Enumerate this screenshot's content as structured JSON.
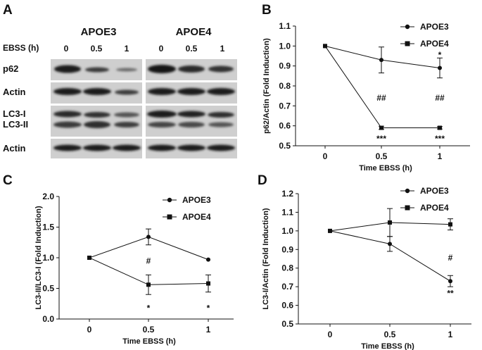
{
  "panel_labels": [
    "A",
    "B",
    "C",
    "D"
  ],
  "western_blot": {
    "group_labels": [
      "APOE3",
      "APOE4"
    ],
    "treatment_label": "EBSS (h)",
    "lane_labels": [
      "0",
      "0.5",
      "1",
      "0",
      "0.5",
      "1"
    ],
    "row_labels": [
      "p62",
      "Actin",
      "LC3-I",
      "LC3-II",
      "Actin"
    ]
  },
  "chart_data": [
    {
      "panel": "B",
      "type": "line",
      "x": [
        0,
        0.5,
        1
      ],
      "x_tick_labels": [
        "0",
        "0.5",
        "1"
      ],
      "xlabel": "Time EBSS (h)",
      "ylabel": "p62/Actin (Fold Induction)",
      "ylim": [
        0.5,
        1.1
      ],
      "yticks": [
        0.5,
        0.6,
        0.7,
        0.8,
        0.9,
        1.0,
        1.1
      ],
      "ytick_labels": [
        "0.5",
        "0.6",
        "0.7",
        "0.8",
        "0.9",
        "1.0",
        "1.1"
      ],
      "legend_position": "top-right",
      "series": [
        {
          "name": "APOE3",
          "marker": "circle",
          "values": [
            1.0,
            0.93,
            0.89
          ],
          "errors": [
            0,
            0.065,
            0.05
          ]
        },
        {
          "name": "APOE4",
          "marker": "square",
          "values": [
            1.0,
            0.59,
            0.59
          ],
          "errors": [
            0,
            0.008,
            0.006
          ]
        }
      ],
      "annotations": [
        {
          "text": "*",
          "x": 1,
          "y": 0.955
        },
        {
          "text": "##",
          "x": 0.5,
          "y": 0.74
        },
        {
          "text": "##",
          "x": 1,
          "y": 0.74
        },
        {
          "text": "***",
          "x": 0.5,
          "y": 0.535
        },
        {
          "text": "***",
          "x": 1,
          "y": 0.535
        }
      ]
    },
    {
      "panel": "C",
      "type": "line",
      "x": [
        0,
        0.5,
        1
      ],
      "x_tick_labels": [
        "0",
        "0.5",
        "1"
      ],
      "xlabel": "Time EBSS (h)",
      "ylabel": "LC3-II/LC3-I (Fold Induction)",
      "ylim": [
        0,
        2.0
      ],
      "yticks": [
        0,
        0.5,
        1.0,
        1.5,
        2.0
      ],
      "ytick_labels": [
        "0.0",
        "0.5",
        "1.0",
        "1.5",
        "2.0"
      ],
      "legend_position": "top-right",
      "series": [
        {
          "name": "APOE3",
          "marker": "circle",
          "values": [
            1.0,
            1.34,
            0.97
          ],
          "errors": [
            0,
            0.13,
            0
          ]
        },
        {
          "name": "APOE4",
          "marker": "square",
          "values": [
            1.0,
            0.56,
            0.58
          ],
          "errors": [
            0,
            0.16,
            0.14
          ]
        }
      ],
      "annotations": [
        {
          "text": "#",
          "x": 0.5,
          "y": 0.95
        },
        {
          "text": "*",
          "x": 0.5,
          "y": 0.18
        },
        {
          "text": "*",
          "x": 1,
          "y": 0.18
        }
      ]
    },
    {
      "panel": "D",
      "type": "line",
      "x": [
        0,
        0.5,
        1
      ],
      "x_tick_labels": [
        "0",
        "0.5",
        "1"
      ],
      "xlabel": "Time EBSS (h)",
      "ylabel": "LC3-I/Actin (Fold Induction)",
      "ylim": [
        0.5,
        1.2
      ],
      "yticks": [
        0.5,
        0.6,
        0.7,
        0.8,
        0.9,
        1.0,
        1.1,
        1.2
      ],
      "ytick_labels": [
        "0.5",
        "0.6",
        "0.7",
        "0.8",
        "0.9",
        "1.0",
        "1.1",
        "1.2"
      ],
      "legend_position": "top-right",
      "series": [
        {
          "name": "APOE3",
          "marker": "circle",
          "values": [
            1.0,
            0.93,
            0.73
          ],
          "errors": [
            0,
            0.04,
            0.03
          ]
        },
        {
          "name": "APOE4",
          "marker": "square",
          "values": [
            1.0,
            1.045,
            1.035
          ],
          "errors": [
            0,
            0.075,
            0.03
          ]
        }
      ],
      "annotations": [
        {
          "text": "#",
          "x": 1,
          "y": 0.855
        },
        {
          "text": "**",
          "x": 1,
          "y": 0.665
        }
      ]
    }
  ]
}
